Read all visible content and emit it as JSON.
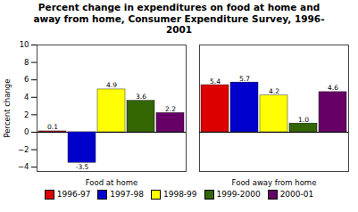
{
  "chart_data": {
    "type": "bar",
    "title": "Percent change in expenditures on food at home and\naway from home, Consumer Expenditure Survey, 1996-\n2001",
    "ylabel": "Percent change",
    "categories": [
      "Food at home",
      "Food away from home"
    ],
    "series": [
      {
        "name": "1996-97",
        "color": "#dd0000",
        "values": [
          0.1,
          5.4
        ],
        "value_labels": [
          "0.1",
          "5.4"
        ]
      },
      {
        "name": "1997-98",
        "color": "#0000cc",
        "values": [
          -3.5,
          5.7
        ],
        "value_labels": [
          "-3.5",
          "5.7"
        ]
      },
      {
        "name": "1998-99",
        "color": "#ffff00",
        "values": [
          4.9,
          4.2
        ],
        "value_labels": [
          "4.9",
          "4.2"
        ]
      },
      {
        "name": "1999-2000",
        "color": "#336600",
        "values": [
          3.6,
          1.0
        ],
        "value_labels": [
          "3.6",
          "1.0"
        ]
      },
      {
        "name": "2000-01",
        "color": "#660066",
        "values": [
          2.2,
          4.6
        ],
        "value_labels": [
          "2.2",
          "4.6"
        ]
      }
    ],
    "ylim": [
      -4.5,
      10
    ],
    "yticks": [
      -4,
      -2,
      0,
      2,
      4,
      6,
      8,
      10
    ],
    "grid": false,
    "legend": "bottom",
    "data_labels": true
  }
}
